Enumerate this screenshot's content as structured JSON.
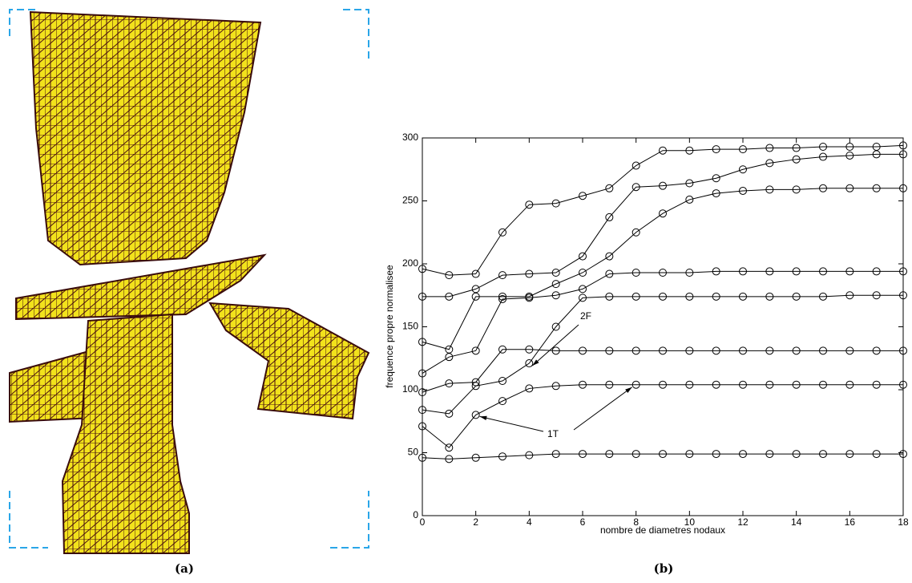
{
  "figure": {
    "captions": [
      "(a)",
      "(b)"
    ]
  },
  "chart_data": {
    "type": "line",
    "x_label": "nombre de diametres nodaux",
    "y_label": "frequence propre normalisee",
    "x": [
      0,
      1,
      2,
      3,
      4,
      5,
      6,
      7,
      8,
      9,
      10,
      11,
      12,
      13,
      14,
      15,
      16,
      17,
      18
    ],
    "xlim": [
      0,
      18
    ],
    "xticks": [
      0,
      2,
      4,
      6,
      8,
      10,
      12,
      14,
      16,
      18
    ],
    "ylim": [
      0,
      300
    ],
    "yticks": [
      0,
      50,
      100,
      150,
      200,
      250,
      300
    ],
    "marker": "circle",
    "series": [
      {
        "color": "#000000",
        "values": [
          46,
          45,
          46,
          47,
          48,
          49,
          49,
          49,
          49,
          49,
          49,
          49,
          49,
          49,
          49,
          49,
          49,
          49,
          49
        ]
      },
      {
        "color": "#000000",
        "values": [
          71,
          54,
          80,
          91,
          101,
          103,
          104,
          104,
          104,
          104,
          104,
          104,
          104,
          104,
          104,
          104,
          104,
          104,
          104
        ]
      },
      {
        "color": "#000000",
        "values": [
          98,
          105,
          106,
          132,
          132,
          131,
          131,
          131,
          131,
          131,
          131,
          131,
          131,
          131,
          131,
          131,
          131,
          131,
          131
        ]
      },
      {
        "color": "#000000",
        "values": [
          84,
          81,
          103,
          107,
          121,
          150,
          173,
          174,
          174,
          174,
          174,
          174,
          174,
          174,
          174,
          174,
          175,
          175,
          175
        ]
      },
      {
        "color": "#000000",
        "values": [
          113,
          126,
          131,
          172,
          173,
          175,
          180,
          192,
          193,
          193,
          193,
          194,
          194,
          194,
          194,
          194,
          194,
          194,
          194
        ]
      },
      {
        "color": "#000000",
        "values": [
          138,
          132,
          174,
          174,
          174,
          184,
          193,
          206,
          225,
          240,
          251,
          256,
          258,
          259,
          259,
          260,
          260,
          260,
          260
        ]
      },
      {
        "color": "#000000",
        "values": [
          174,
          174,
          180,
          191,
          192,
          193,
          206,
          237,
          261,
          262,
          264,
          268,
          275,
          280,
          283,
          285,
          286,
          287,
          287
        ]
      },
      {
        "color": "#000000",
        "values": [
          196,
          191,
          192,
          225,
          247,
          248,
          254,
          260,
          278,
          290,
          290,
          291,
          291,
          292,
          292,
          293,
          293,
          293,
          294
        ]
      }
    ],
    "annotations": [
      {
        "text": "2F"
      },
      {
        "text": "1T"
      }
    ]
  }
}
